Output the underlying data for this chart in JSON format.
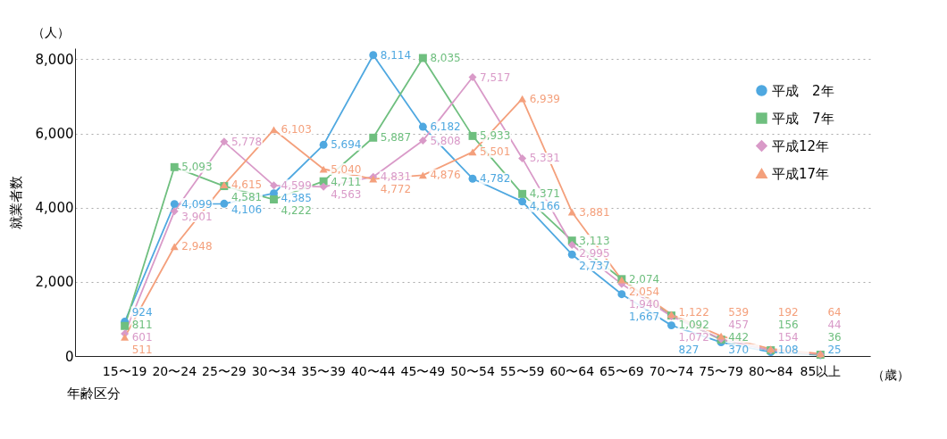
{
  "chart_data": {
    "type": "line",
    "ylabel": "就業者数",
    "xlabel": "年齢区分",
    "annotations": [
      "（人）",
      "（歳）"
    ],
    "categories": [
      "15〜19",
      "20〜24",
      "25〜29",
      "30〜34",
      "35〜39",
      "40〜44",
      "45〜49",
      "50〜54",
      "55〜59",
      "60〜64",
      "65〜69",
      "70〜74",
      "75〜79",
      "80〜84",
      "85以上"
    ],
    "series": [
      {
        "name": "平成　2年",
        "color": "#4fa8e0",
        "marker": "circle",
        "values": [
          924,
          4099,
          4106,
          4385,
          5694,
          8114,
          6182,
          4782,
          4166,
          2737,
          1667,
          827,
          370,
          108,
          25
        ],
        "value_labels": [
          "924",
          "4,099",
          "4,106",
          "4,385",
          "5,694",
          "8,114",
          "6,182",
          "4,782",
          "4,166",
          "2,737",
          "1,667",
          "827",
          "370",
          "108",
          "25"
        ]
      },
      {
        "name": "平成　7年",
        "color": "#6fbf7f",
        "marker": "square",
        "values": [
          811,
          5093,
          4581,
          4222,
          4711,
          5887,
          8035,
          5933,
          4371,
          3113,
          2074,
          1092,
          442,
          156,
          36
        ],
        "value_labels": [
          "811",
          "5,093",
          "4,581",
          "4,222",
          "4,711",
          "5,887",
          "8,035",
          "5,933",
          "4,371",
          "3,113",
          "2,074",
          "1,092",
          "442",
          "156",
          "36"
        ]
      },
      {
        "name": "平成12年",
        "color": "#d99ac8",
        "marker": "diamond",
        "values": [
          601,
          3901,
          5778,
          4599,
          4563,
          4831,
          5808,
          7517,
          5331,
          2995,
          1940,
          1072,
          457,
          154,
          44
        ],
        "value_labels": [
          "601",
          "3,901",
          "5,778",
          "4,599",
          "4,563",
          "4,831",
          "5,808",
          "7,517",
          "5,331",
          "2,995",
          "1,940",
          "1,072",
          "457",
          "154",
          "44"
        ]
      },
      {
        "name": "平成17年",
        "color": "#f4a07c",
        "marker": "triangle",
        "values": [
          511,
          2948,
          4615,
          6103,
          5040,
          4772,
          4876,
          5501,
          6939,
          3881,
          2054,
          1122,
          539,
          192,
          64
        ],
        "value_labels": [
          "511",
          "2,948",
          "4,615",
          "6,103",
          "5,040",
          "4,772",
          "4,876",
          "5,501",
          "6,939",
          "3,881",
          "2,054",
          "1,122",
          "539",
          "192",
          "64"
        ]
      }
    ],
    "ylim": [
      0,
      8300
    ],
    "yticks": [
      0,
      {
        "value": 2000,
        "label": "2,000"
      },
      {
        "value": 4000,
        "label": "4,000"
      },
      {
        "value": 6000,
        "label": "6,000"
      },
      {
        "value": 8000,
        "label": "8,000"
      }
    ],
    "grid": "y",
    "legend": "top right",
    "line_style": "solid"
  }
}
